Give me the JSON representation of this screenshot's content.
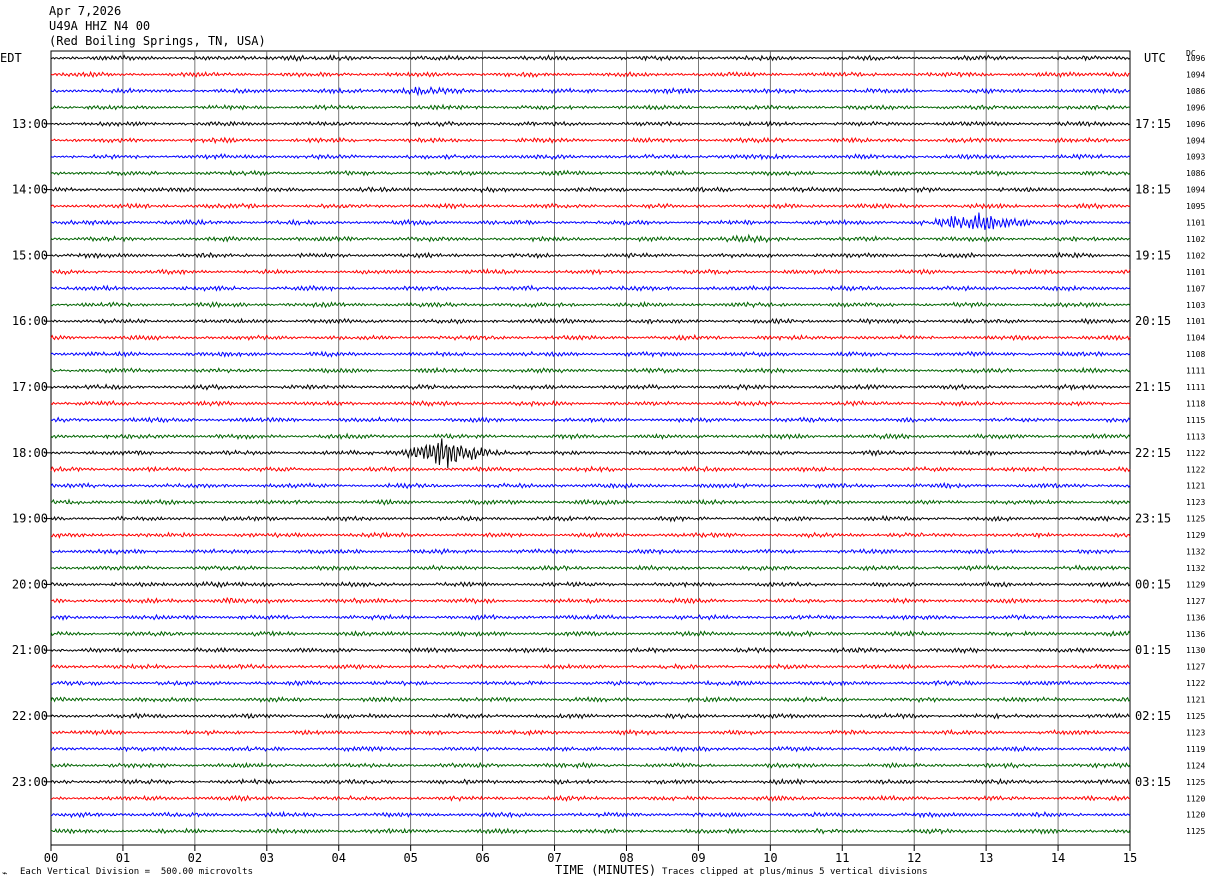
{
  "header": {
    "date": "Apr 7,2026",
    "station": "U49A HHZ N4 00",
    "location": "(Red Boiling Springs, TN, USA)"
  },
  "axes": {
    "left_tz": "EDT",
    "right_tz": "UTC",
    "right_col_header": "DC",
    "xlabel": "TIME (MINUTES)"
  },
  "footer": {
    "scale_note": "Each Vertical Division =  500.00 microvolts",
    "clip_note": "Traces clipped at plus/minus 5 vertical divisions"
  },
  "chart_data": {
    "type": "line",
    "description_source": "helicorder",
    "x_range": [
      0,
      15
    ],
    "x_ticks": [
      "00",
      "01",
      "02",
      "03",
      "04",
      "05",
      "06",
      "07",
      "08",
      "09",
      "10",
      "11",
      "12",
      "13",
      "14",
      "15"
    ],
    "trace_colors": [
      "#000000",
      "#ff0000",
      "#0000ff",
      "#006400"
    ],
    "left_hour_labels": [
      "13:00",
      "14:00",
      "15:00",
      "16:00",
      "17:00",
      "18:00",
      "19:00",
      "20:00",
      "21:00",
      "22:00",
      "23:00"
    ],
    "right_hour_labels": [
      "17:15",
      "18:15",
      "19:15",
      "20:15",
      "21:15",
      "22:15",
      "23:15",
      "00:15",
      "01:15",
      "02:15",
      "03:15"
    ],
    "first_labeled_row": 4,
    "dc_offsets": [
      1096,
      1094,
      1086,
      1096,
      1096,
      1094,
      1093,
      1086,
      1094,
      1095,
      1101,
      1102,
      1102,
      1101,
      1107,
      1103,
      1101,
      1104,
      1108,
      1111,
      1111,
      1118,
      1115,
      1113,
      1122,
      1122,
      1121,
      1123,
      1125,
      1129,
      1132,
      1132,
      1129,
      1127,
      1136,
      1136,
      1130,
      1127,
      1122,
      1121,
      1125,
      1123,
      1119,
      1124,
      1125,
      1120,
      1120,
      1125
    ],
    "events": [
      {
        "row": 0,
        "start_min": 2.9,
        "end_min": 3.6,
        "amp": 2.2
      },
      {
        "row": 1,
        "start_min": 14.6,
        "end_min": 15.0,
        "amp": 2.5
      },
      {
        "row": 2,
        "start_min": 4.6,
        "end_min": 5.6,
        "amp": 2.5
      },
      {
        "row": 10,
        "start_min": 10.8,
        "end_min": 13.6,
        "amp": 9.0,
        "peak_min": 12.9
      },
      {
        "row": 11,
        "start_min": 9.0,
        "end_min": 10.2,
        "amp": 1.6
      },
      {
        "row": 24,
        "start_min": 4.0,
        "end_min": 6.7,
        "amp": 12.0,
        "peak_min": 5.5
      },
      {
        "row": 32,
        "start_min": 1.8,
        "end_min": 2.6,
        "amp": 1.6
      },
      {
        "row": 33,
        "start_min": 2.2,
        "end_min": 2.8,
        "amp": 2.0
      }
    ]
  }
}
